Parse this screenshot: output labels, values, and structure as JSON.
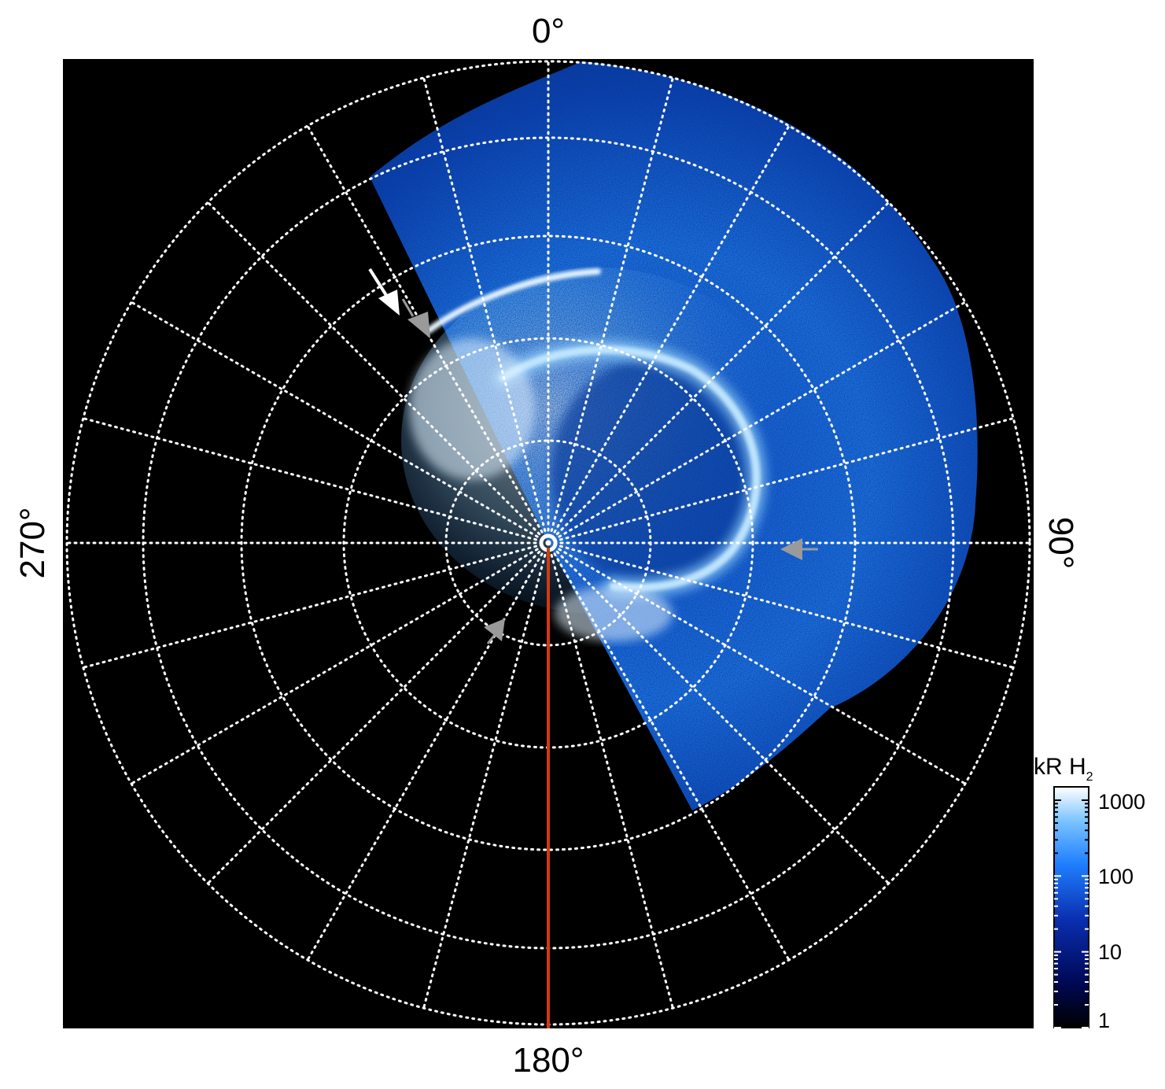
{
  "figure": {
    "azimuth_labels": {
      "top": "0°",
      "right": "90°",
      "bottom": "180°",
      "left": "270°"
    },
    "colorbar": {
      "title": "kR H",
      "title_subscript": "2",
      "ticks": [
        "1000",
        "100",
        "10",
        "1"
      ],
      "scale": "log",
      "range": [
        1,
        1500
      ],
      "colormap": [
        "#000000",
        "#000a5a",
        "#0a2fb0",
        "#1f7fff",
        "#7cc4ff",
        "#ffffff"
      ]
    },
    "colors": {
      "background": "#000000",
      "grid": "#ffffff",
      "reference_line": "#d23a10",
      "arrow_primary": "#ffffff",
      "arrow_secondary": "#9a9a9a"
    },
    "grid": {
      "style": "dotted",
      "rings": 5,
      "meridian_step_deg": 15
    },
    "annotations": [
      {
        "name": "white-arrow",
        "color": "#ffffff"
      },
      {
        "name": "grey-arrow-upper-left",
        "color": "#9a9a9a"
      },
      {
        "name": "grey-arrow-right",
        "color": "#9a9a9a"
      },
      {
        "name": "grey-arrow-lower-left",
        "color": "#9a9a9a"
      }
    ]
  }
}
